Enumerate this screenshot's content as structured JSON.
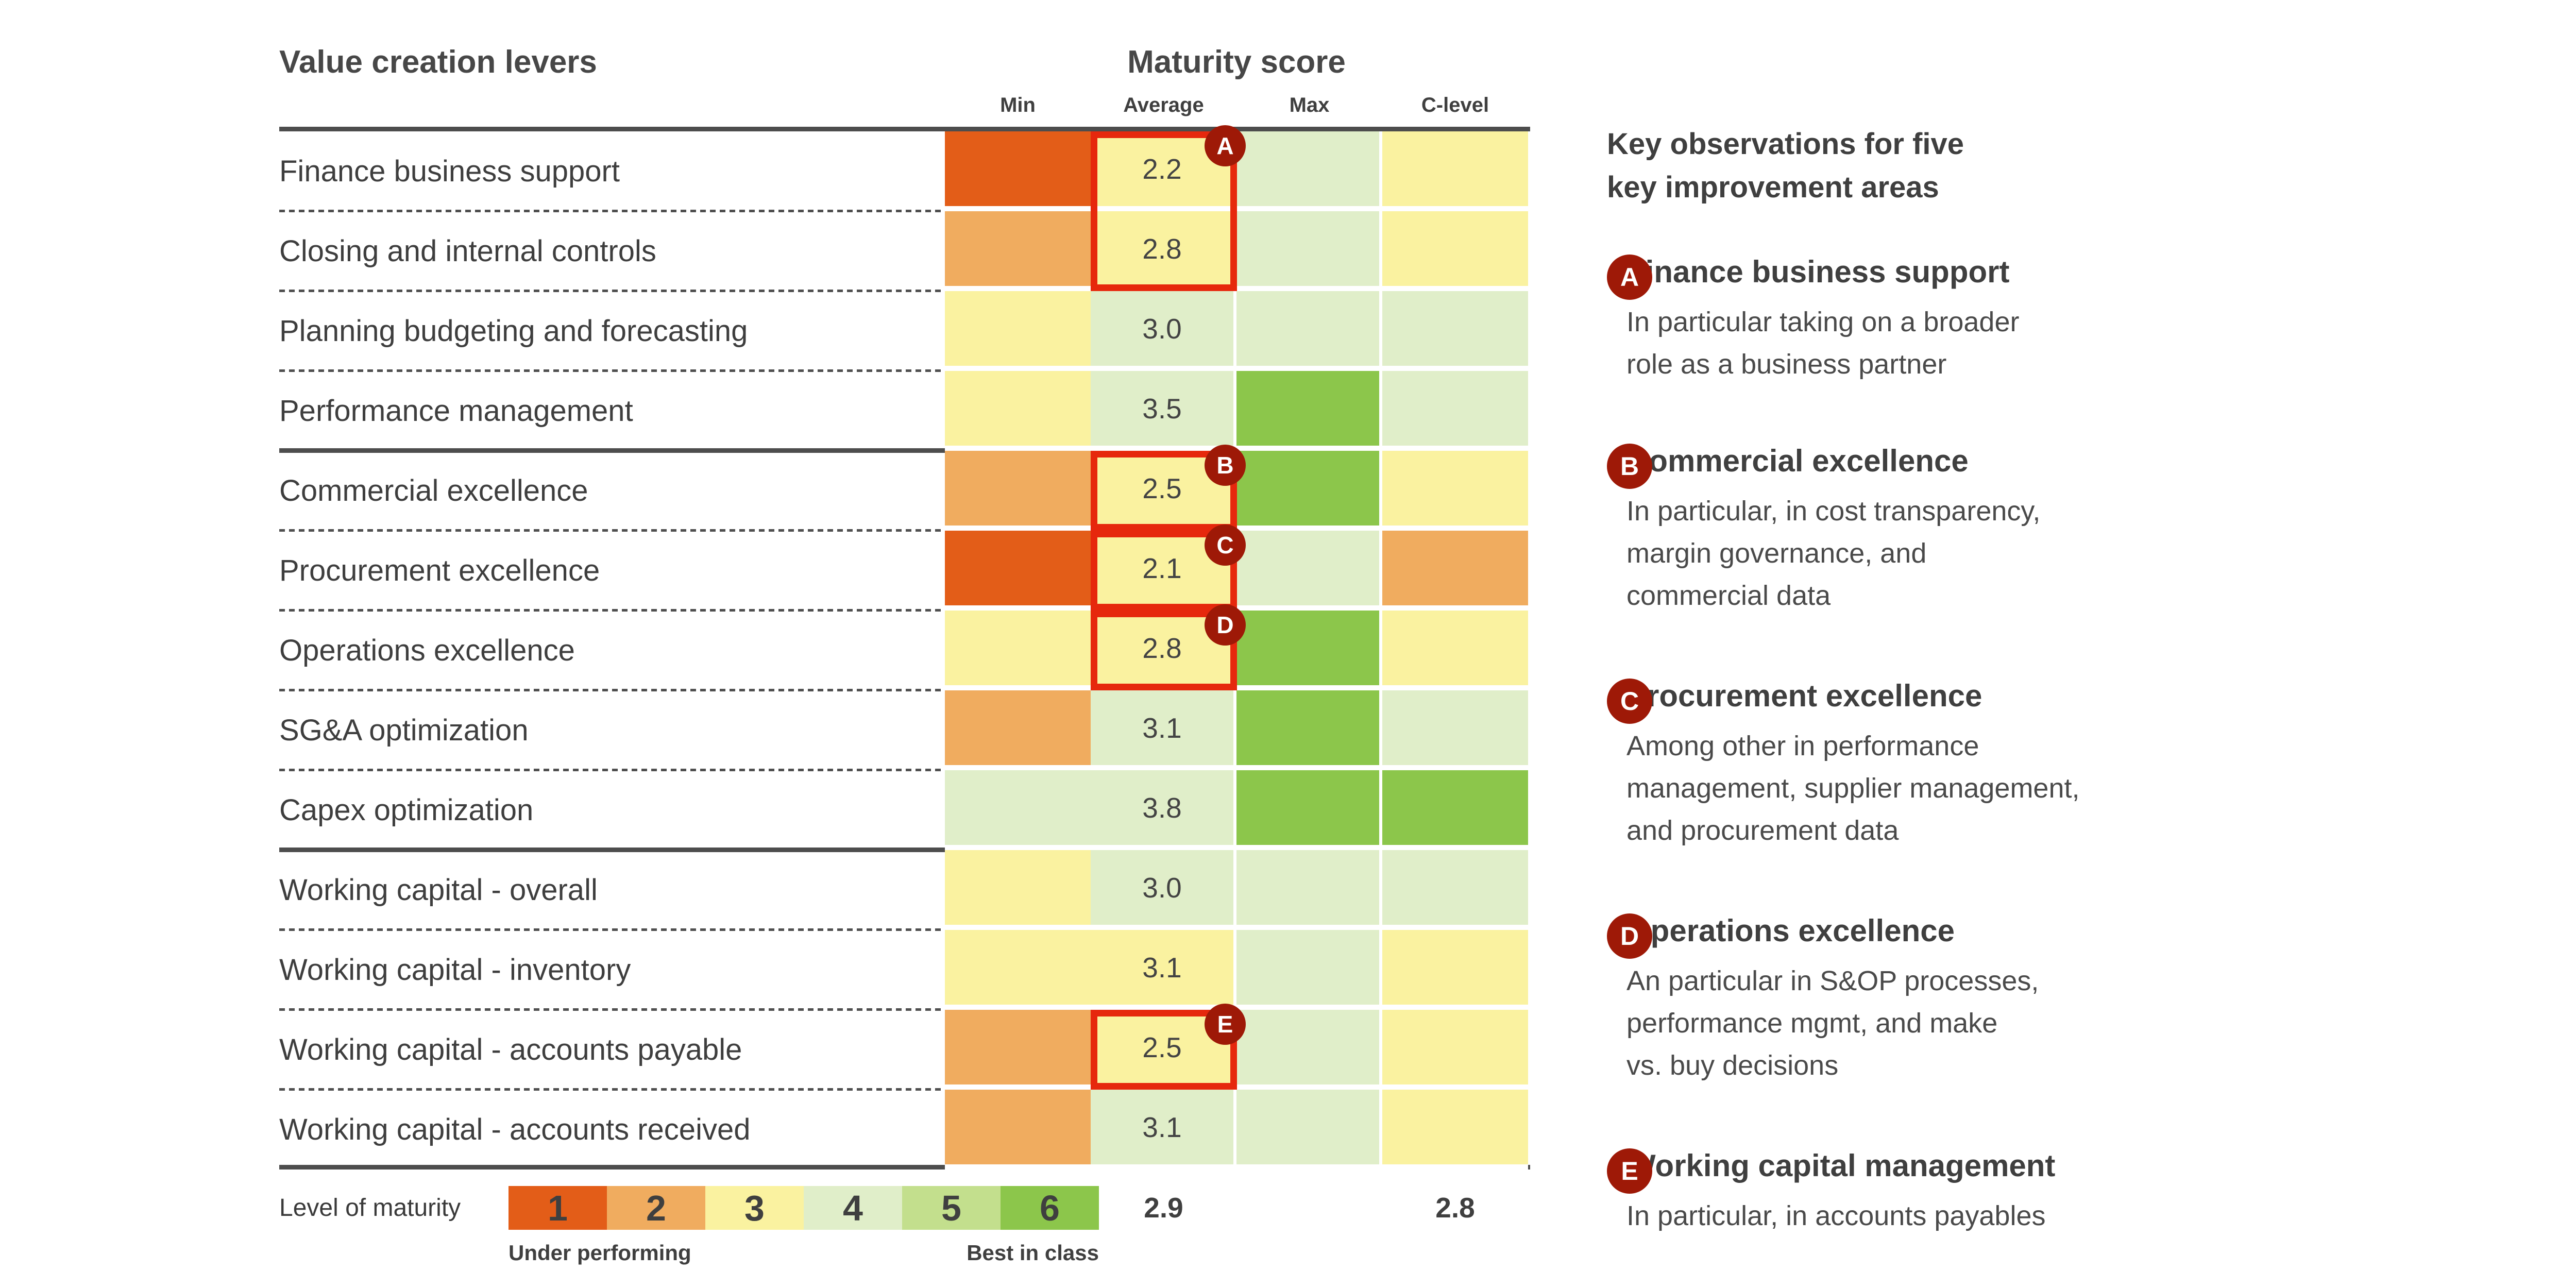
{
  "chart_data": {
    "type": "heatmap",
    "row_header": "Value creation levers",
    "title": "Maturity score",
    "columns": [
      "Min",
      "Average",
      "Max",
      "C-level"
    ],
    "scale": {
      "min": 1,
      "max": 6,
      "low_label": "Under performing",
      "high_label": "Best in class"
    },
    "palette": {
      "1": "#E35D18",
      "2": "#F0AC5F",
      "3": "#FAF2A0",
      "4": "#E0EEC9",
      "5": "#C3DF8D",
      "6": "#8CC64B"
    },
    "marker_box_color": "#E6280D",
    "badge_color": "#9E1907",
    "rows": [
      {
        "label": "Finance business support",
        "min": 1,
        "average_level": 3,
        "average": "2.2",
        "max": 4,
        "c_level": 3,
        "divider": "dashed"
      },
      {
        "label": "Closing and internal controls",
        "min": 2,
        "average_level": 3,
        "average": "2.8",
        "max": 4,
        "c_level": 3,
        "divider": "dashed"
      },
      {
        "label": "Planning budgeting and forecasting",
        "min": 3,
        "average_level": 4,
        "average": "3.0",
        "max": 4,
        "c_level": 4,
        "divider": "dashed"
      },
      {
        "label": "Performance management",
        "min": 3,
        "average_level": 4,
        "average": "3.5",
        "max": 6,
        "c_level": 4,
        "divider": "solid"
      },
      {
        "label": "Commercial excellence",
        "min": 2,
        "average_level": 3,
        "average": "2.5",
        "max": 6,
        "c_level": 3,
        "divider": "dashed"
      },
      {
        "label": "Procurement excellence",
        "min": 1,
        "average_level": 3,
        "average": "2.1",
        "max": 4,
        "c_level": 2,
        "divider": "dashed"
      },
      {
        "label": "Operations excellence",
        "min": 3,
        "average_level": 3,
        "average": "2.8",
        "max": 6,
        "c_level": 3,
        "divider": "dashed"
      },
      {
        "label": "SG&A optimization",
        "min": 2,
        "average_level": 4,
        "average": "3.1",
        "max": 6,
        "c_level": 4,
        "divider": "dashed"
      },
      {
        "label": "Capex optimization",
        "min": 4,
        "average_level": 4,
        "average": "3.8",
        "max": 6,
        "c_level": 6,
        "divider": "solid"
      },
      {
        "label": "Working capital - overall",
        "min": 3,
        "average_level": 4,
        "average": "3.0",
        "max": 4,
        "c_level": 4,
        "divider": "dashed"
      },
      {
        "label": "Working capital - inventory",
        "min": 3,
        "average_level": 3,
        "average": "3.1",
        "max": 4,
        "c_level": 3,
        "divider": "dashed"
      },
      {
        "label": "Working capital - accounts payable",
        "min": 2,
        "average_level": 3,
        "average": "2.5",
        "max": 4,
        "c_level": 3,
        "divider": "dashed"
      },
      {
        "label": "Working capital - accounts received",
        "min": 2,
        "average_level": 4,
        "average": "3.1",
        "max": 4,
        "c_level": 3,
        "divider": "none"
      }
    ],
    "markers": [
      {
        "letter": "A",
        "row": 1,
        "span": 2
      },
      {
        "letter": "B",
        "row": 5,
        "span": 1
      },
      {
        "letter": "C",
        "row": 6,
        "span": 1
      },
      {
        "letter": "D",
        "row": 7,
        "span": 1
      },
      {
        "letter": "E",
        "row": 12,
        "span": 1
      }
    ],
    "summary": {
      "average": "2.9",
      "c_level": "2.8"
    },
    "legend": {
      "label": "Level of maturity",
      "levels": [
        "1",
        "2",
        "3",
        "4",
        "5",
        "6"
      ],
      "low_caption": "Under performing",
      "high_caption": "Best in class"
    },
    "observations": {
      "title_lines": [
        "Key observations for five",
        "key improvement areas"
      ],
      "items": [
        {
          "letter": "A",
          "heading": "Finance business support",
          "body_lines": [
            "In particular taking on a broader",
            "role as a business partner"
          ]
        },
        {
          "letter": "B",
          "heading": "Commercial excellence",
          "body_lines": [
            "In particular, in cost transparency,",
            "margin governance, and",
            "commercial data"
          ]
        },
        {
          "letter": "C",
          "heading": "Procurement excellence",
          "body_lines": [
            "Among other in performance",
            "management, supplier management,",
            "and procurement data"
          ]
        },
        {
          "letter": "D",
          "heading": "Operations excellence",
          "body_lines": [
            "An particular in S&OP processes,",
            "performance mgmt, and make",
            "vs. buy decisions"
          ]
        },
        {
          "letter": "E",
          "heading": "Working capital management",
          "body_lines": [
            "In particular, in accounts payables"
          ]
        }
      ]
    }
  }
}
